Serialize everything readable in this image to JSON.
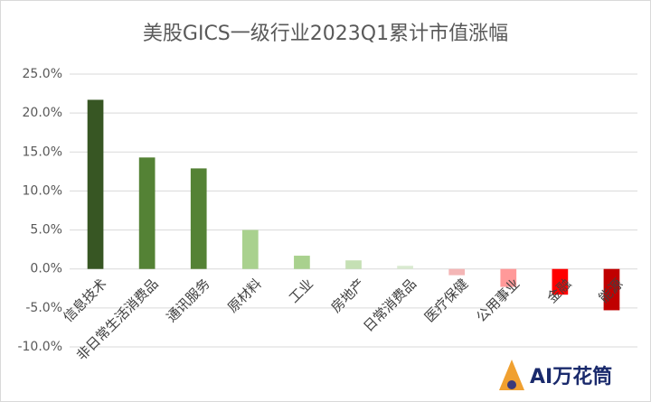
{
  "chart_data": {
    "type": "bar",
    "title": "美股GICS一级行业2023Q1累计市值涨幅",
    "categories": [
      "信息技术",
      "非日常生活消费品",
      "通讯服务",
      "原材料",
      "工业",
      "房地产",
      "日常消费品",
      "医疗保健",
      "公用事业",
      "金融",
      "能源"
    ],
    "values": [
      21.7,
      14.3,
      12.9,
      5.0,
      1.7,
      1.1,
      0.4,
      -0.8,
      -2.3,
      -3.3,
      -5.3
    ],
    "colors": [
      "#375623",
      "#548235",
      "#548235",
      "#a9d18e",
      "#a9d18e",
      "#c5e0b4",
      "#d9ead0",
      "#f4b6b6",
      "#ff9999",
      "#ff0000",
      "#c00000"
    ],
    "ylim": [
      -10,
      25
    ],
    "yticks": [
      {
        "value": -10,
        "label": "-10.0%"
      },
      {
        "value": -5,
        "label": "-5.0%"
      },
      {
        "value": 0,
        "label": "0.0%"
      },
      {
        "value": 5,
        "label": "5.0%"
      },
      {
        "value": 10,
        "label": "10.0%"
      },
      {
        "value": 15,
        "label": "15.0%"
      },
      {
        "value": 20,
        "label": "20.0%"
      },
      {
        "value": 25,
        "label": "25.0%"
      }
    ],
    "grid": true,
    "watermark": "AI万花筒"
  }
}
